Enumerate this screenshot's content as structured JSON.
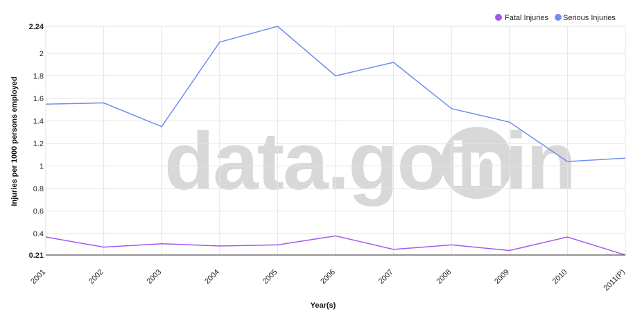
{
  "chart_data": {
    "type": "line",
    "xlabel": "Year(s)",
    "ylabel": "Injuries per 1000 persons employed",
    "categories": [
      "2001",
      "2002",
      "2003",
      "2004",
      "2005",
      "2006",
      "2007",
      "2008",
      "2009",
      "2010",
      "2011(P)"
    ],
    "ylim": [
      0.21,
      2.24
    ],
    "y_ticks": [
      "0.21",
      "0.4",
      "0.6",
      "0.8",
      "1",
      "1.2",
      "1.4",
      "1.6",
      "1.8",
      "2",
      "2.24"
    ],
    "series": [
      {
        "name": "Fatal Injuries",
        "color": "#a259f0",
        "values": [
          0.37,
          0.28,
          0.31,
          0.29,
          0.3,
          0.38,
          0.26,
          0.3,
          0.25,
          0.37,
          0.21
        ]
      },
      {
        "name": "Serious Injuries",
        "color": "#6f8ff0",
        "values": [
          1.55,
          1.56,
          1.35,
          2.1,
          2.24,
          1.8,
          1.92,
          1.51,
          1.39,
          1.04,
          1.07
        ]
      }
    ],
    "legend_position": "top-right",
    "grid": true,
    "watermark": "data.gov.in"
  }
}
